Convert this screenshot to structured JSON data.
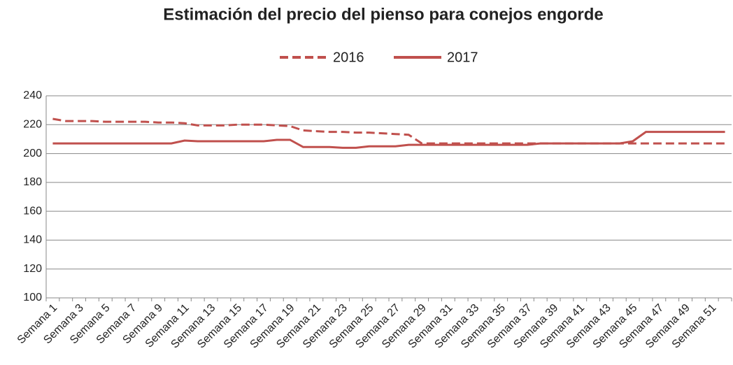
{
  "chart_data": {
    "type": "line",
    "title": "Estimación del precio del pienso para conejos engorde",
    "categories": [
      "Semana 1",
      null,
      "Semana 3",
      null,
      "Semana 5",
      null,
      "Semana 7",
      null,
      "Semana 9",
      null,
      "Semana 11",
      null,
      "Semana 13",
      null,
      "Semana 15",
      null,
      "Semana 17",
      null,
      "Semana 19",
      null,
      "Semana 21",
      null,
      "Semana 23",
      null,
      "Semana 25",
      null,
      "Semana 27",
      null,
      "Semana 29",
      null,
      "Semana 31",
      null,
      "Semana 33",
      null,
      "Semana 35",
      null,
      "Semana 37",
      null,
      "Semana 39",
      null,
      "Semana 41",
      null,
      "Semana 43",
      null,
      "Semana 45",
      null,
      "Semana 47",
      null,
      "Semana 49",
      null,
      "Semana 51",
      null
    ],
    "series": [
      {
        "name": "2016",
        "color": "#c0504d",
        "dashed": true,
        "values": [
          224,
          222.5,
          222.5,
          222.5,
          222,
          222,
          222,
          222,
          221.5,
          221.5,
          221,
          219.5,
          219.5,
          219.5,
          220,
          220,
          220,
          219.5,
          219,
          216,
          215.5,
          215,
          215,
          214.5,
          214.5,
          214,
          213.5,
          213,
          207,
          207,
          207,
          207,
          207,
          207,
          207,
          207,
          207,
          207,
          207,
          207,
          207,
          207,
          207,
          207,
          207,
          207,
          207,
          207,
          207,
          207,
          207,
          207
        ]
      },
      {
        "name": "2017",
        "color": "#c0504d",
        "dashed": false,
        "values": [
          207,
          207,
          207,
          207,
          207,
          207,
          207,
          207,
          207,
          207,
          209,
          208.5,
          208.5,
          208.5,
          208.5,
          208.5,
          208.5,
          209.5,
          209.5,
          204.5,
          204.5,
          204.5,
          204,
          204,
          205,
          205,
          205,
          206,
          206,
          206,
          206,
          206,
          206,
          206,
          206,
          206,
          206,
          207,
          207,
          207,
          207,
          207,
          207,
          207,
          208.5,
          215,
          215,
          215,
          215,
          215,
          215,
          215
        ]
      }
    ],
    "ylim": [
      100,
      240
    ],
    "yticks": [
      100,
      120,
      140,
      160,
      180,
      200,
      220,
      240
    ],
    "grid": true
  }
}
